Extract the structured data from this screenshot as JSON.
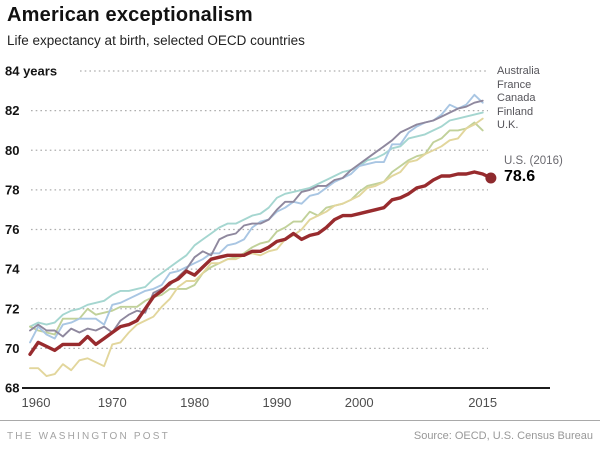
{
  "footer": {
    "brand": "THE WASHINGTON POST",
    "source": "Source: OECD, U.S. Census Bureau"
  },
  "chart_data": {
    "type": "line",
    "title": "American exceptionalism",
    "subtitle": "Life expectancy at birth, selected OECD countries",
    "xlabel": "",
    "ylabel": "years",
    "xlim": [
      1960,
      2016
    ],
    "ylim": [
      68,
      84
    ],
    "grid": "horizontal-dotted",
    "legend_position": "right",
    "start_year": 1960,
    "xticks": [
      {
        "year": 1960,
        "label": "1960"
      },
      {
        "year": 1970,
        "label": "1970"
      },
      {
        "year": 1980,
        "label": "1980"
      },
      {
        "year": 1990,
        "label": "1990"
      },
      {
        "year": 2000,
        "label": "2000"
      },
      {
        "year": 2015,
        "label": "2015"
      }
    ],
    "yticks": [
      {
        "value": 84,
        "label": "84 years"
      },
      {
        "value": 82,
        "label": "82"
      },
      {
        "value": 80,
        "label": "80"
      },
      {
        "value": 78,
        "label": "78"
      },
      {
        "value": 76,
        "label": "76"
      },
      {
        "value": 74,
        "label": "74"
      },
      {
        "value": 72,
        "label": "72"
      },
      {
        "value": 70,
        "label": "70"
      },
      {
        "value": 68,
        "label": "68"
      }
    ],
    "us_annotation": {
      "label": "U.S. (2016)",
      "value": "78.6"
    },
    "series": [
      {
        "name": "Australia",
        "color": "#8f889e",
        "end_year": 2015,
        "values": [
          70.9,
          71.2,
          70.9,
          70.9,
          70.6,
          71.0,
          70.8,
          71.0,
          70.9,
          71.1,
          70.8,
          71.4,
          71.7,
          71.9,
          71.8,
          72.8,
          73.0,
          73.2,
          73.6,
          74.0,
          74.6,
          74.9,
          74.7,
          75.5,
          75.7,
          75.8,
          76.2,
          76.3,
          76.3,
          76.5,
          77.0,
          77.4,
          77.4,
          77.9,
          78.0,
          78.2,
          78.2,
          78.5,
          78.6,
          79.0,
          79.3,
          79.6,
          79.9,
          80.2,
          80.5,
          80.9,
          81.1,
          81.3,
          81.4,
          81.5,
          81.7,
          81.9,
          82.1,
          82.2,
          82.4,
          82.5
        ]
      },
      {
        "name": "France",
        "color": "#a9c6e3",
        "end_year": 2015,
        "values": [
          70.3,
          71.1,
          70.7,
          70.5,
          71.2,
          71.3,
          71.5,
          71.5,
          71.5,
          71.2,
          72.2,
          72.3,
          72.5,
          72.7,
          72.9,
          73.0,
          73.2,
          73.8,
          73.9,
          74.1,
          74.3,
          74.5,
          74.8,
          74.8,
          75.2,
          75.3,
          75.5,
          76.1,
          76.4,
          76.5,
          76.9,
          77.1,
          77.4,
          77.3,
          77.7,
          77.8,
          78.1,
          78.4,
          78.6,
          78.8,
          79.2,
          79.3,
          79.4,
          79.4,
          80.3,
          80.3,
          80.9,
          81.2,
          81.4,
          81.5,
          81.8,
          82.3,
          82.1,
          82.3,
          82.8,
          82.4
        ]
      },
      {
        "name": "Canada",
        "color": "#a5d6d0",
        "end_year": 2015,
        "values": [
          71.1,
          71.3,
          71.2,
          71.3,
          71.7,
          71.9,
          72.0,
          72.2,
          72.3,
          72.4,
          72.7,
          72.9,
          72.9,
          73.0,
          73.1,
          73.5,
          73.8,
          74.1,
          74.4,
          74.7,
          75.2,
          75.5,
          75.8,
          76.1,
          76.3,
          76.3,
          76.5,
          76.7,
          76.8,
          77.1,
          77.6,
          77.8,
          77.9,
          78.0,
          78.1,
          78.3,
          78.5,
          78.7,
          78.9,
          79.0,
          79.2,
          79.5,
          79.6,
          79.8,
          80.1,
          80.2,
          80.6,
          80.7,
          80.8,
          81.0,
          81.2,
          81.5,
          81.6,
          81.7,
          81.8,
          81.9
        ]
      },
      {
        "name": "Finland",
        "color": "#e2d69c",
        "end_year": 2015,
        "values": [
          69.0,
          69.0,
          68.6,
          68.7,
          69.2,
          68.9,
          69.4,
          69.5,
          69.3,
          69.1,
          70.2,
          70.3,
          70.8,
          71.2,
          71.4,
          71.6,
          72.1,
          72.5,
          73.1,
          73.4,
          73.4,
          73.8,
          74.3,
          74.3,
          74.5,
          74.5,
          74.7,
          74.8,
          74.7,
          74.9,
          75.0,
          75.5,
          75.7,
          76.0,
          76.5,
          76.7,
          76.9,
          77.2,
          77.3,
          77.5,
          77.7,
          78.1,
          78.2,
          78.4,
          78.7,
          78.9,
          79.4,
          79.5,
          79.8,
          80.0,
          80.2,
          80.5,
          80.6,
          81.1,
          81.3,
          81.6
        ]
      },
      {
        "name": "U.K.",
        "color": "#c1d19a",
        "end_year": 2015,
        "values": [
          71.1,
          70.9,
          70.8,
          70.7,
          71.5,
          71.5,
          71.5,
          72.0,
          71.7,
          71.8,
          71.9,
          72.1,
          72.1,
          72.1,
          72.4,
          72.6,
          72.7,
          73.0,
          73.0,
          73.0,
          73.2,
          73.8,
          74.1,
          74.3,
          74.5,
          74.6,
          74.8,
          75.1,
          75.3,
          75.4,
          75.9,
          76.1,
          76.4,
          76.4,
          76.9,
          76.7,
          77.1,
          77.2,
          77.3,
          77.5,
          77.9,
          78.2,
          78.3,
          78.4,
          78.9,
          79.2,
          79.5,
          79.7,
          79.8,
          80.4,
          80.6,
          81.0,
          81.0,
          81.1,
          81.4,
          81.0
        ]
      },
      {
        "name": "U.S.",
        "color": "#982b2e",
        "end_year": 2016,
        "values": [
          69.7,
          70.3,
          70.1,
          69.9,
          70.2,
          70.2,
          70.2,
          70.6,
          70.2,
          70.5,
          70.8,
          71.1,
          71.2,
          71.4,
          72.0,
          72.6,
          72.9,
          73.3,
          73.5,
          73.9,
          73.7,
          74.1,
          74.5,
          74.6,
          74.7,
          74.7,
          74.7,
          74.9,
          74.9,
          75.1,
          75.4,
          75.5,
          75.8,
          75.5,
          75.7,
          75.8,
          76.1,
          76.5,
          76.7,
          76.7,
          76.8,
          76.9,
          77.0,
          77.1,
          77.5,
          77.6,
          77.8,
          78.1,
          78.2,
          78.5,
          78.7,
          78.7,
          78.8,
          78.8,
          78.9,
          78.8,
          78.6
        ]
      }
    ]
  }
}
